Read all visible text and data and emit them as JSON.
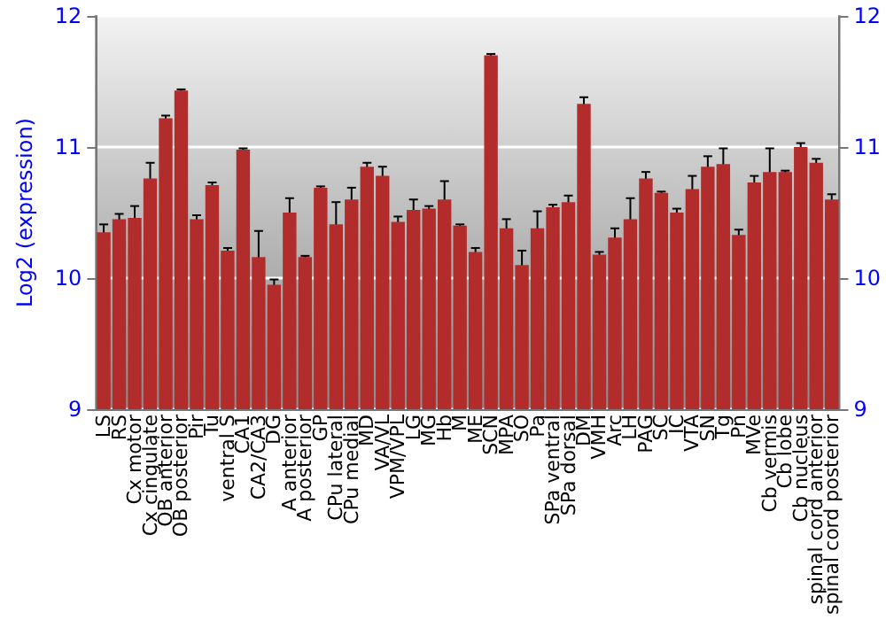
{
  "chart_data": {
    "type": "bar",
    "ylabel": "Log2 (expression)",
    "categories": [
      "LS",
      "RS",
      "Cx motor",
      "Cx cingulate",
      "OB anterior",
      "OB posterior",
      "Pir",
      "Tu",
      "ventral S",
      "CA1",
      "CA2/CA3",
      "DG",
      "A anterior",
      "A posterior",
      "GP",
      "CPu lateral",
      "CPu medial",
      "MD",
      "VA/VL",
      "VPM/VPL",
      "LG",
      "MG",
      "Hb",
      "M",
      "ME",
      "SCN",
      "MPA",
      "SO",
      "Pa",
      "SPa ventral",
      "SPa dorsal",
      "DM",
      "VMH",
      "Arc",
      "LH",
      "PAG",
      "SC",
      "IC",
      "VTA",
      "SN",
      "Tg",
      "Pn",
      "MVe",
      "Cb vermis",
      "Cb lobe",
      "Cb nucleus",
      "spinal cord anterior",
      "spinal cord posterior"
    ],
    "values": [
      10.35,
      10.45,
      10.46,
      10.76,
      11.22,
      11.43,
      10.45,
      10.71,
      10.21,
      10.98,
      10.16,
      9.95,
      10.5,
      10.16,
      10.69,
      10.41,
      10.6,
      10.85,
      10.78,
      10.43,
      10.52,
      10.53,
      10.6,
      10.4,
      10.2,
      11.7,
      10.38,
      10.1,
      10.38,
      10.54,
      10.58,
      11.33,
      10.18,
      10.31,
      10.45,
      10.76,
      10.65,
      10.5,
      10.68,
      10.85,
      10.87,
      10.33,
      10.73,
      10.81,
      10.81,
      11.0,
      10.88,
      10.6
    ],
    "errors": [
      0.06,
      0.04,
      0.09,
      0.12,
      0.02,
      0.01,
      0.03,
      0.02,
      0.02,
      0.01,
      0.2,
      0.04,
      0.11,
      0.01,
      0.01,
      0.17,
      0.09,
      0.03,
      0.07,
      0.04,
      0.08,
      0.02,
      0.14,
      0.01,
      0.03,
      0.01,
      0.07,
      0.11,
      0.13,
      0.02,
      0.05,
      0.05,
      0.02,
      0.07,
      0.16,
      0.05,
      0.01,
      0.03,
      0.1,
      0.08,
      0.12,
      0.04,
      0.05,
      0.18,
      0.01,
      0.03,
      0.03,
      0.04
    ],
    "color": "#b22c2c",
    "ylim": [
      9,
      12
    ],
    "yticks": [
      9,
      10,
      11,
      12
    ],
    "y2lim": [
      9,
      12
    ],
    "y2ticks": [
      9,
      10,
      11,
      12
    ],
    "grid": "y"
  }
}
